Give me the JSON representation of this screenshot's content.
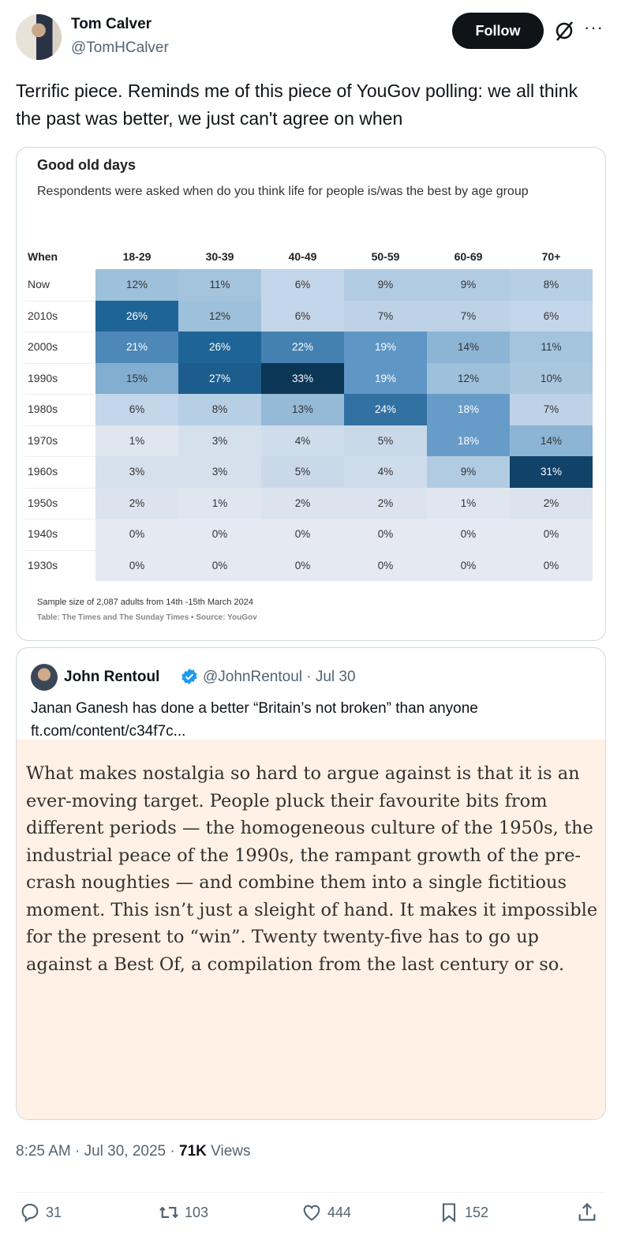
{
  "author": {
    "name": "Tom Calver",
    "handle": "@TomHCalver"
  },
  "follow_label": "Follow",
  "more_label": "···",
  "tweet_text": "Terrific piece. Reminds me of this piece of YouGov polling: we all think the past was better, we just can't agree on when",
  "chart_data": {
    "type": "heatmap",
    "title": "Good old days",
    "subtitle": "Respondents were asked when do you think life for people is/was the best by age group",
    "row_header": "When",
    "columns": [
      "18-29",
      "30-39",
      "40-49",
      "50-59",
      "60-69",
      "70+"
    ],
    "rows": [
      "Now",
      "2010s",
      "2000s",
      "1990s",
      "1980s",
      "1970s",
      "1960s",
      "1950s",
      "1940s",
      "1930s"
    ],
    "values": [
      [
        12,
        11,
        6,
        9,
        9,
        8
      ],
      [
        26,
        12,
        6,
        7,
        7,
        6
      ],
      [
        21,
        26,
        22,
        19,
        14,
        11
      ],
      [
        15,
        27,
        33,
        19,
        12,
        10
      ],
      [
        6,
        8,
        13,
        24,
        18,
        7
      ],
      [
        1,
        3,
        4,
        5,
        18,
        14
      ],
      [
        3,
        3,
        5,
        4,
        9,
        31
      ],
      [
        2,
        1,
        2,
        2,
        1,
        2
      ],
      [
        0,
        0,
        0,
        0,
        0,
        0
      ],
      [
        0,
        0,
        0,
        0,
        0,
        0
      ]
    ],
    "unit": "%",
    "color_low": "#e5e9f1",
    "color_high": "#0b3656",
    "footnote": "Sample size of 2,087 adults from 14th -15th March 2024",
    "source": "Table: The Times and The Sunday Times • Source: YouGov"
  },
  "quote": {
    "name": "John Rentoul",
    "handle": "@JohnRentoul · Jul 30",
    "text": "Janan Ganesh has done a better “Britain’s not broken” than anyone ft.com/content/c34f7c...",
    "article_text": "What makes nostalgia so hard to argue against is that it is an ever-moving target. People pluck their favourite bits from different periods — the homogeneous culture of the 1950s, the industrial peace of the 1990s, the rampant growth of the pre-crash noughties — and combine them into a single fictitious moment. This isn’t just a sleight of hand. It makes it impossible for the present to “win”. Twenty twenty-five has to go up against a Best Of, a compilation from the last century or so."
  },
  "meta": {
    "time": "8:25 AM · Jul 30, 2025 · ",
    "views_count": "71K",
    "views_label": " Views"
  },
  "actions": {
    "replies": "31",
    "reposts": "103",
    "likes": "444",
    "bookmarks": "152"
  }
}
